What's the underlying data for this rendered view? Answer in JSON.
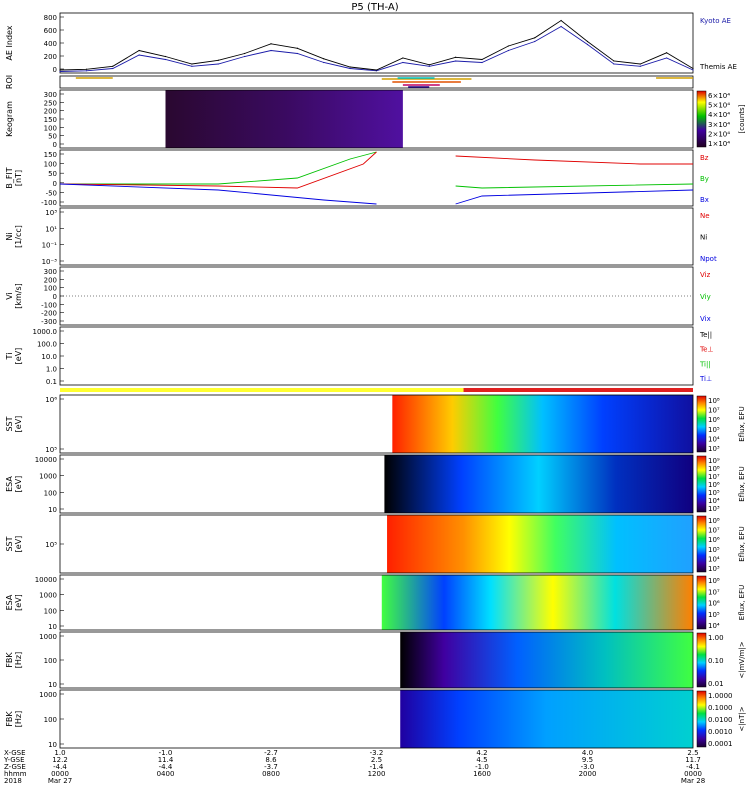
{
  "title": "P5 (TH-A)",
  "panels": [
    {
      "id": "ae",
      "label": "AE Index",
      "ticks": [
        "800",
        "600",
        "400",
        "200",
        "0"
      ],
      "legend": [
        {
          "text": "Kyoto AE",
          "color": "#1a1aa8"
        },
        {
          "text": "Themis AE",
          "color": "#000000"
        }
      ]
    },
    {
      "id": "roi",
      "label": "ROI",
      "ticks": []
    },
    {
      "id": "keogram",
      "label": "Keogram",
      "ticks": [
        "300",
        "250",
        "200",
        "150",
        "100",
        "50",
        "0"
      ],
      "colorbar": {
        "unit": "[counts]",
        "ticks": [
          "6×10⁴",
          "5×10⁴",
          "4×10⁴",
          "3×10⁴",
          "2×10⁴",
          "1×10⁴"
        ]
      }
    },
    {
      "id": "bfit",
      "label": "B_FIT\n[nT]",
      "ticks": [
        "150",
        "100",
        "50",
        "0",
        "-50",
        "-100"
      ],
      "legend": [
        {
          "text": "Bz",
          "color": "#e00000"
        },
        {
          "text": "By",
          "color": "#00c000"
        },
        {
          "text": "Bx",
          "color": "#0000e0"
        }
      ]
    },
    {
      "id": "ni",
      "label": "Ni\n[1/cc]",
      "ticks": [
        "10³",
        "10¹",
        "10⁻¹",
        "10⁻³"
      ],
      "legend": [
        {
          "text": "Ne",
          "color": "#e00000"
        },
        {
          "text": "Ni",
          "color": "#000000"
        },
        {
          "text": "Npot",
          "color": "#0000e0"
        }
      ]
    },
    {
      "id": "vi",
      "label": "Vi\n[km/s]",
      "ticks": [
        "300",
        "200",
        "100",
        "0",
        "-100",
        "-200",
        "-300"
      ],
      "legend": [
        {
          "text": "Viz",
          "color": "#e00000"
        },
        {
          "text": "Viy",
          "color": "#00c000"
        },
        {
          "text": "Vix",
          "color": "#0000e0"
        }
      ]
    },
    {
      "id": "ti",
      "label": "Ti\n[eV]",
      "ticks": [
        "1000.0",
        "100.0",
        "10.0",
        "1.0",
        "0.1"
      ],
      "legend": [
        {
          "text": "Te||",
          "color": "#000000"
        },
        {
          "text": "Te⊥",
          "color": "#e00000"
        },
        {
          "text": "Ti||",
          "color": "#00c000"
        },
        {
          "text": "Ti⊥",
          "color": "#0000e0"
        }
      ]
    },
    {
      "id": "sst1",
      "label": "SST\n[eV]",
      "ticks": [
        "10⁶",
        "10⁵"
      ],
      "colorbar": {
        "unit": "Eflux, EFU",
        "ticks": [
          "10⁸",
          "10⁷",
          "10⁶",
          "10⁵",
          "10⁴",
          "10³"
        ]
      }
    },
    {
      "id": "esa1",
      "label": "ESA\n[eV]",
      "ticks": [
        "10000",
        "1000",
        "100",
        "10"
      ],
      "colorbar": {
        "unit": "Eflux, EFU",
        "ticks": [
          "10⁹",
          "10⁸",
          "10⁷",
          "10⁶",
          "10⁵",
          "10⁴",
          "10³"
        ]
      }
    },
    {
      "id": "sst2",
      "label": "SST\n[eV]",
      "ticks": [
        "10⁵"
      ],
      "colorbar": {
        "unit": "Eflux, EFU",
        "ticks": [
          "10⁸",
          "10⁷",
          "10⁶",
          "10⁵",
          "10⁴",
          "10³"
        ]
      }
    },
    {
      "id": "esa2",
      "label": "ESA\n[eV]",
      "ticks": [
        "10000",
        "1000",
        "100",
        "10"
      ],
      "colorbar": {
        "unit": "Eflux, EFU",
        "ticks": [
          "10⁸",
          "10⁷",
          "10⁶",
          "10⁵",
          "10⁴"
        ]
      }
    },
    {
      "id": "fbk1",
      "label": "FBK\n[Hz]",
      "ticks": [
        "1000",
        "100",
        "10"
      ],
      "colorbar": {
        "unit": "<|mV/m|>",
        "ticks": [
          "1.00",
          "0.10",
          "0.01"
        ]
      }
    },
    {
      "id": "fbk2",
      "label": "FBK\n[Hz]",
      "ticks": [
        "1000",
        "100",
        "10"
      ],
      "colorbar": {
        "unit": "<|nT|>",
        "ticks": [
          "1.0000",
          "0.1000",
          "0.0100",
          "0.0010",
          "0.0001"
        ]
      }
    }
  ],
  "time_axis": {
    "row_labels": [
      "X-GSE",
      "Y-GSE",
      "Z-GSE",
      "hhmm",
      "2018"
    ],
    "columns": [
      {
        "x": "1.0",
        "y": "12.2",
        "z": "-4.4",
        "hhmm": "0000",
        "date": "Mar 27"
      },
      {
        "x": "-1.0",
        "y": "11.4",
        "z": "-4.4",
        "hhmm": "0400",
        "date": ""
      },
      {
        "x": "-2.7",
        "y": "8.6",
        "z": "-3.7",
        "hhmm": "0800",
        "date": ""
      },
      {
        "x": "-3.2",
        "y": "2.5",
        "z": "-1.4",
        "hhmm": "1200",
        "date": ""
      },
      {
        "x": "4.2",
        "y": "4.5",
        "z": "-1.0",
        "hhmm": "1600",
        "date": ""
      },
      {
        "x": "4.0",
        "y": "9.5",
        "z": "-3.0",
        "hhmm": "2000",
        "date": ""
      },
      {
        "x": "2.5",
        "y": "11.7",
        "z": "-4.1",
        "hhmm": "0000",
        "date": "Mar 28"
      }
    ]
  },
  "chart_data": {
    "type": "line",
    "title": "P5 (TH-A)",
    "x_unit": "hours since 2018-03-27 00:00",
    "ae": {
      "ylim": [
        0,
        800
      ],
      "series": [
        {
          "name": "Kyoto AE",
          "color": "#1a1aa8",
          "x": [
            0,
            1,
            2,
            3,
            4,
            5,
            6,
            7,
            8,
            9,
            10,
            11,
            12,
            13,
            14,
            15,
            16,
            17,
            18,
            19,
            20,
            21,
            22,
            23,
            24
          ],
          "y": [
            20,
            30,
            60,
            240,
            180,
            90,
            120,
            220,
            300,
            260,
            140,
            60,
            30,
            140,
            90,
            160,
            140,
            300,
            420,
            620,
            380,
            120,
            90,
            200,
            40
          ]
        },
        {
          "name": "Themis AE",
          "color": "#000000",
          "x": [
            0,
            1,
            2,
            3,
            4,
            5,
            6,
            7,
            8,
            9,
            10,
            11,
            12,
            13,
            14,
            15,
            16,
            17,
            18,
            19,
            20,
            21,
            22,
            23,
            24
          ],
          "y": [
            40,
            50,
            90,
            300,
            220,
            120,
            170,
            260,
            390,
            330,
            190,
            80,
            40,
            200,
            110,
            210,
            180,
            360,
            470,
            700,
            420,
            160,
            120,
            270,
            60
          ]
        }
      ]
    }
  }
}
